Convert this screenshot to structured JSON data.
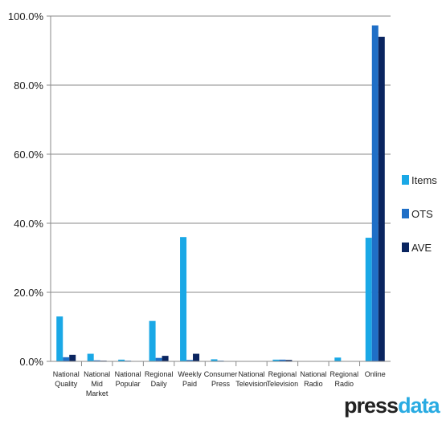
{
  "chart_data": {
    "type": "bar",
    "title": "",
    "xlabel": "",
    "ylabel": "",
    "ylim": [
      0,
      100
    ],
    "yticks": [
      "0.0%",
      "20.0%",
      "40.0%",
      "60.0%",
      "80.0%",
      "100.0%"
    ],
    "grid": true,
    "legend_position": "right",
    "categories": [
      [
        "National",
        "Quality"
      ],
      [
        "National",
        "Mid",
        "Market"
      ],
      [
        "National",
        "Popular"
      ],
      [
        "Regional",
        "Daily"
      ],
      [
        "Weekly",
        "Paid"
      ],
      [
        "Consumer",
        "Press"
      ],
      [
        "National",
        "Television"
      ],
      [
        "Regional",
        "Television"
      ],
      [
        "National",
        "Radio"
      ],
      [
        "Regional",
        "Radio"
      ],
      [
        "Online"
      ]
    ],
    "series": [
      {
        "name": "Items",
        "color": "#1aa8e6",
        "values": [
          13.0,
          2.2,
          0.5,
          11.7,
          36.0,
          0.6,
          0.1,
          0.5,
          0.1,
          1.1,
          35.8
        ]
      },
      {
        "name": "OTS",
        "color": "#1f6fc7",
        "values": [
          1.2,
          0.3,
          0.2,
          1.0,
          0.4,
          0.2,
          0.1,
          0.5,
          0.1,
          0.1,
          97.3
        ]
      },
      {
        "name": "AVE",
        "color": "#0a2560",
        "values": [
          1.9,
          0.2,
          0.1,
          1.6,
          2.2,
          0.1,
          0.1,
          0.4,
          0.1,
          0.1,
          94.0
        ]
      }
    ]
  },
  "branding": {
    "logo_main": "press",
    "logo_accent": "data"
  }
}
